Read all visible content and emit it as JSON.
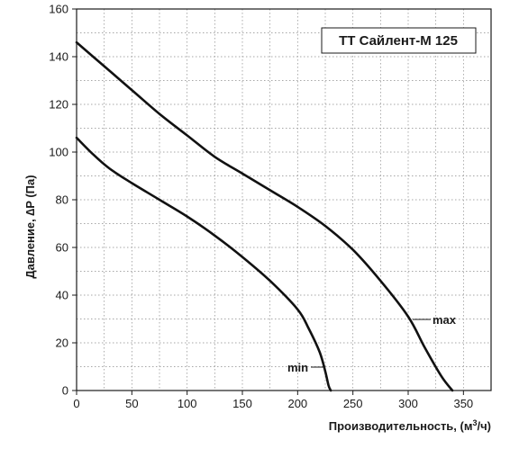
{
  "chart_data": {
    "type": "line",
    "title": "ТТ Сайлент-М 125",
    "xlabel": "Производительность, (м",
    "xlabel_sup": "3",
    "xlabel_tail": "/ч)",
    "ylabel": "Давление, ∆P (Па)",
    "xlim": [
      0,
      375
    ],
    "ylim": [
      0,
      160
    ],
    "xticks": [
      0,
      50,
      100,
      150,
      200,
      250,
      300,
      350
    ],
    "yticks": [
      0,
      20,
      40,
      60,
      80,
      100,
      120,
      140,
      160
    ],
    "grid": true,
    "series": [
      {
        "name": "max",
        "x": [
          0,
          25,
          50,
          75,
          100,
          125,
          150,
          175,
          200,
          225,
          250,
          275,
          300,
          315,
          330,
          340
        ],
        "y": [
          146,
          136,
          126,
          116,
          107,
          98,
          91,
          84,
          77,
          69,
          59,
          46,
          31,
          18,
          6,
          0
        ]
      },
      {
        "name": "min",
        "x": [
          0,
          15,
          30,
          50,
          75,
          100,
          125,
          150,
          175,
          200,
          210,
          220,
          225,
          228,
          230
        ],
        "y": [
          106,
          99,
          93,
          87,
          80,
          73,
          65,
          56,
          46,
          34,
          26,
          16,
          8,
          2,
          0
        ]
      }
    ]
  }
}
